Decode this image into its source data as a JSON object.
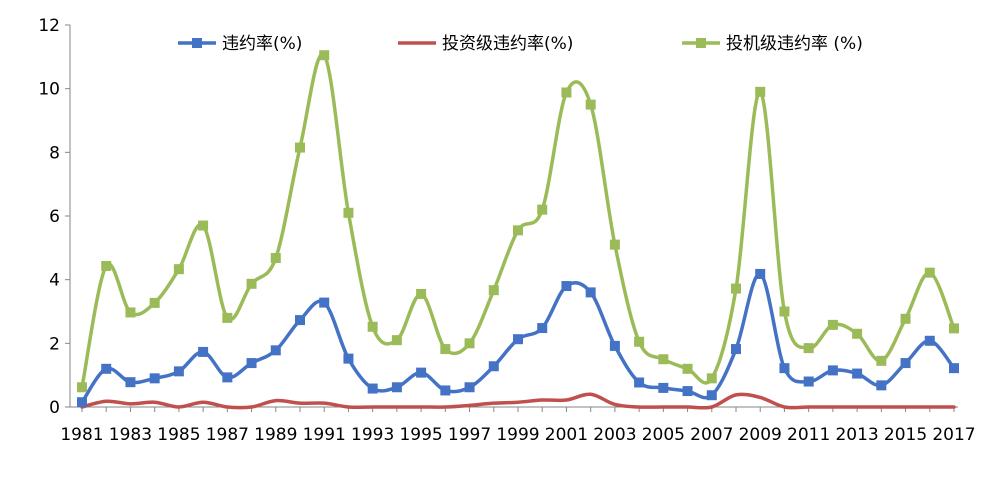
{
  "chart_data": {
    "type": "line",
    "title": "",
    "xlabel": "",
    "ylabel": "",
    "ylim": [
      0,
      12
    ],
    "yticks": [
      0,
      2,
      4,
      6,
      8,
      10,
      12
    ],
    "xlim": [
      1981,
      2017
    ],
    "xtick_labels": [
      "1981",
      "1983",
      "1985",
      "1987",
      "1989",
      "1991",
      "1993",
      "1995",
      "1997",
      "1999",
      "2001",
      "2003",
      "2005",
      "2007",
      "2009",
      "2011",
      "2013",
      "2015",
      "2017"
    ],
    "grid": false,
    "legend_position": "top",
    "x": [
      1981,
      1982,
      1983,
      1984,
      1985,
      1986,
      1987,
      1988,
      1989,
      1990,
      1991,
      1992,
      1993,
      1994,
      1995,
      1996,
      1997,
      1998,
      1999,
      2000,
      2001,
      2002,
      2003,
      2004,
      2005,
      2006,
      2007,
      2008,
      2009,
      2010,
      2011,
      2012,
      2013,
      2014,
      2015,
      2016,
      2017
    ],
    "series": [
      {
        "name": "违约率(%)",
        "color": "#4472C4",
        "marker": "square",
        "values": [
          0.15,
          1.2,
          0.78,
          0.9,
          1.12,
          1.73,
          0.93,
          1.38,
          1.78,
          2.73,
          3.28,
          1.52,
          0.58,
          0.62,
          1.08,
          0.52,
          0.62,
          1.28,
          2.13,
          2.48,
          3.8,
          3.6,
          1.92,
          0.77,
          0.6,
          0.5,
          0.37,
          1.82,
          4.18,
          1.22,
          0.8,
          1.15,
          1.05,
          0.68,
          1.38,
          2.08,
          1.22
        ]
      },
      {
        "name": "投资级违约率(%)",
        "color": "#C0504D",
        "marker": "none",
        "values": [
          0.0,
          0.18,
          0.1,
          0.15,
          0.0,
          0.15,
          0.0,
          0.0,
          0.2,
          0.12,
          0.12,
          0.0,
          0.0,
          0.0,
          0.0,
          0.0,
          0.05,
          0.12,
          0.15,
          0.22,
          0.22,
          0.4,
          0.08,
          0.0,
          0.0,
          0.0,
          0.0,
          0.38,
          0.3,
          0.0,
          0.0,
          0.0,
          0.0,
          0.0,
          0.0,
          0.0,
          0.0
        ]
      },
      {
        "name": "投机级违约率 (%)",
        "color": "#9BBB59",
        "marker": "square",
        "values": [
          0.62,
          4.43,
          2.97,
          3.27,
          4.33,
          5.7,
          2.8,
          3.87,
          4.68,
          8.15,
          11.05,
          6.1,
          2.52,
          2.1,
          3.55,
          1.82,
          2.0,
          3.67,
          5.55,
          6.2,
          9.88,
          9.5,
          5.1,
          2.05,
          1.5,
          1.2,
          0.9,
          3.72,
          9.9,
          3.0,
          1.85,
          2.58,
          2.3,
          1.45,
          2.77,
          4.22,
          2.47
        ]
      }
    ]
  }
}
